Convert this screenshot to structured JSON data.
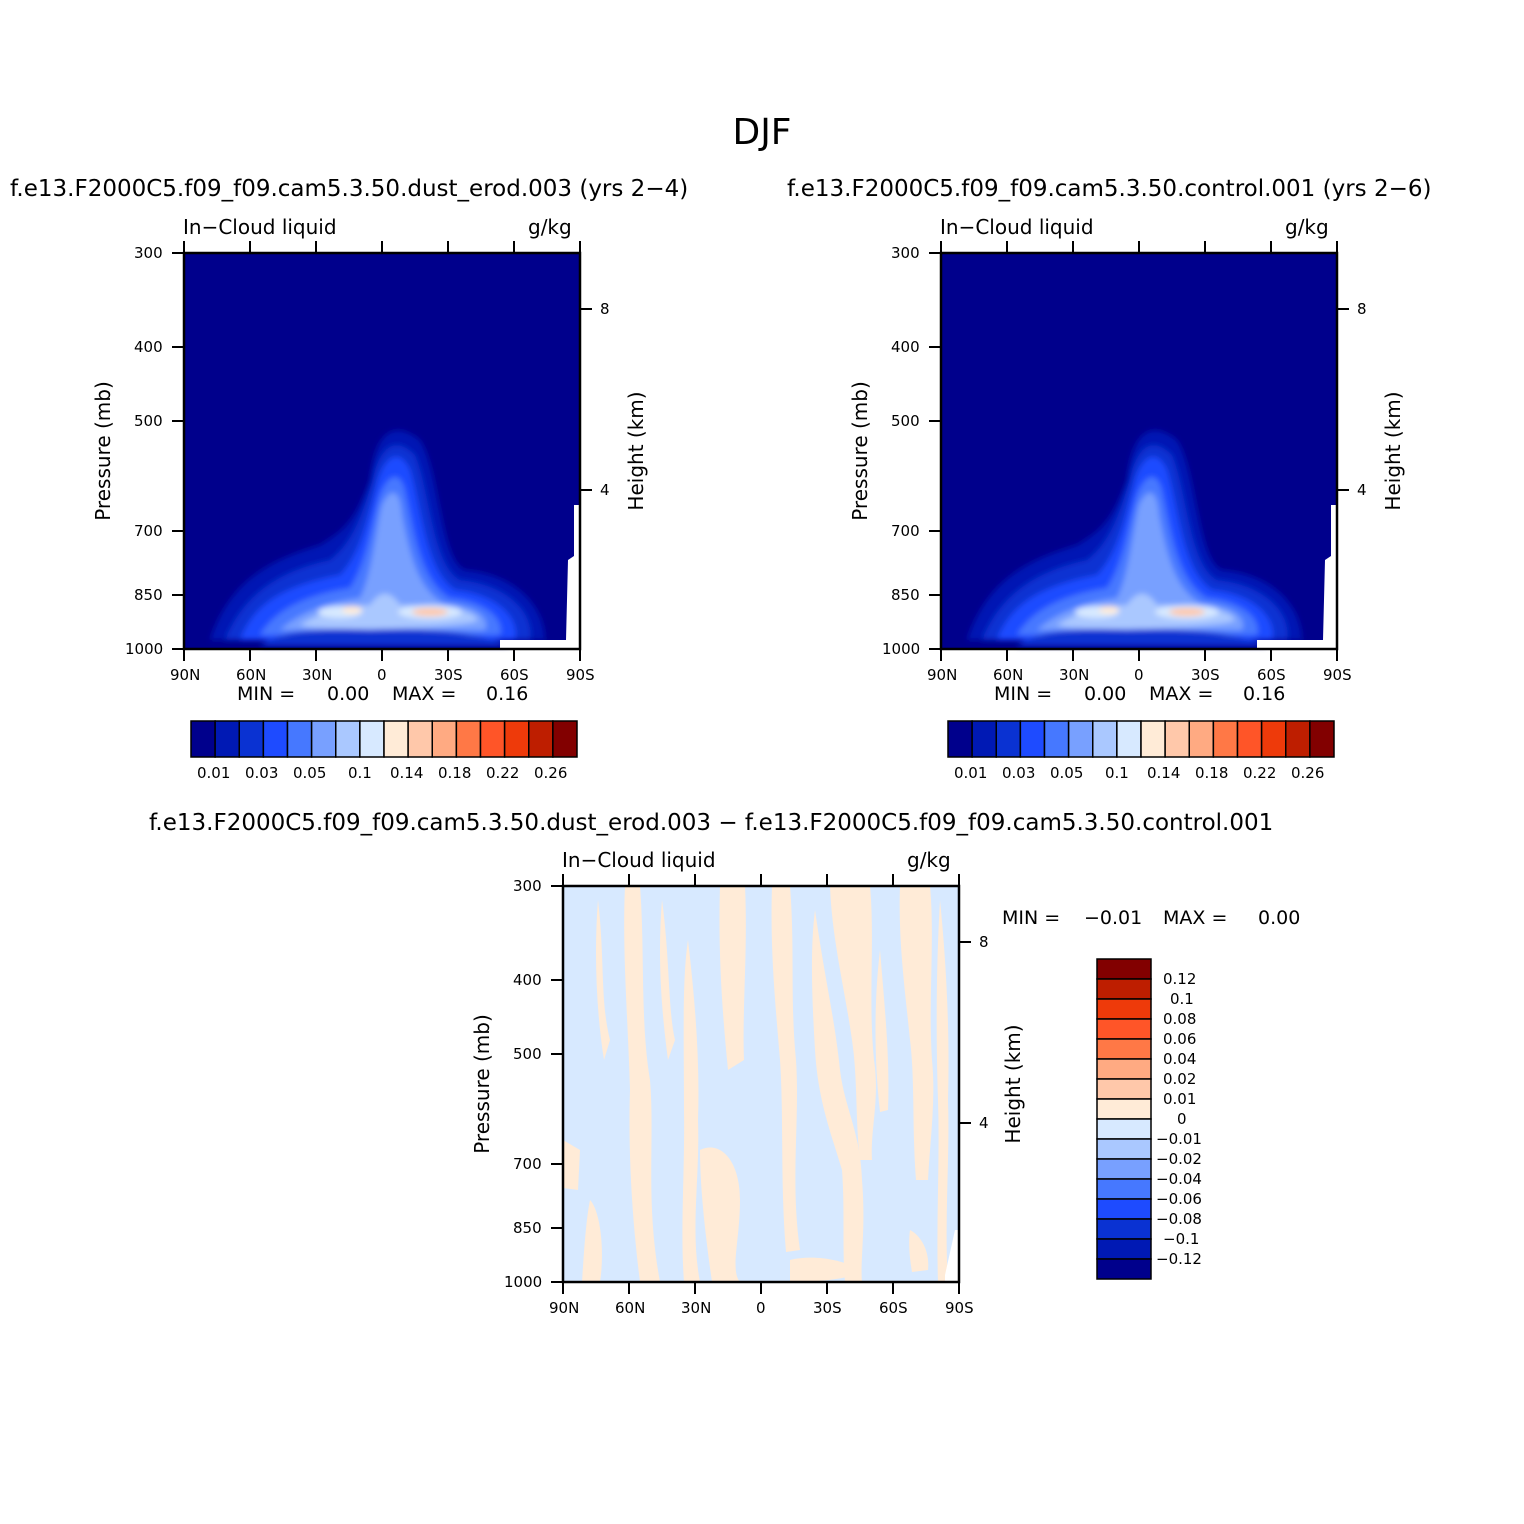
{
  "main_title": "DJF",
  "chart_data": [
    {
      "type": "heatmap",
      "title": "f.e13.F2000C5.f09_f09.cam5.3.50.dust_erod.003 (yrs 2-4)",
      "left_string": "In-Cloud liquid",
      "right_string": "g/kg",
      "ylabel": "Pressure (mb)",
      "y2label": "Height (km)",
      "x_ticks": [
        "90N",
        "60N",
        "30N",
        "0",
        "30S",
        "60S",
        "90S"
      ],
      "y_ticks": [
        "300",
        "400",
        "500",
        "700",
        "850",
        "1000"
      ],
      "y2_ticks": [
        "8",
        "4"
      ],
      "ylim": [
        1000,
        300
      ],
      "min_label": "MIN =",
      "min_value": "0.00",
      "max_label": "MAX =",
      "max_value": "0.16",
      "colorbar_labels": [
        "0.01",
        "0.03",
        "0.05",
        "0.1",
        "0.14",
        "0.18",
        "0.22",
        "0.26"
      ],
      "colorbar_colors": [
        "#00008c",
        "#0019b4",
        "#0a32d2",
        "#1e4bff",
        "#4678ff",
        "#78a0ff",
        "#aac8ff",
        "#d7e9ff",
        "#ffebd7",
        "#ffc8aa",
        "#ffaa82",
        "#ff7846",
        "#ff5528",
        "#ee3a0a",
        "#be1e00",
        "#820000"
      ]
    },
    {
      "type": "heatmap",
      "title": "f.e13.F2000C5.f09_f09.cam5.3.50.control.001 (yrs 2-6)",
      "left_string": "In-Cloud liquid",
      "right_string": "g/kg",
      "ylabel": "Pressure (mb)",
      "y2label": "Height (km)",
      "x_ticks": [
        "90N",
        "60N",
        "30N",
        "0",
        "30S",
        "60S",
        "90S"
      ],
      "y_ticks": [
        "300",
        "400",
        "500",
        "700",
        "850",
        "1000"
      ],
      "y2_ticks": [
        "8",
        "4"
      ],
      "ylim": [
        1000,
        300
      ],
      "min_label": "MIN =",
      "min_value": "0.00",
      "max_label": "MAX =",
      "max_value": "0.16",
      "colorbar_labels": [
        "0.01",
        "0.03",
        "0.05",
        "0.1",
        "0.14",
        "0.18",
        "0.22",
        "0.26"
      ],
      "colorbar_colors": [
        "#00008c",
        "#0019b4",
        "#0a32d2",
        "#1e4bff",
        "#4678ff",
        "#78a0ff",
        "#aac8ff",
        "#d7e9ff",
        "#ffebd7",
        "#ffc8aa",
        "#ffaa82",
        "#ff7846",
        "#ff5528",
        "#ee3a0a",
        "#be1e00",
        "#820000"
      ]
    },
    {
      "type": "heatmap",
      "title": "f.e13.F2000C5.f09_f09.cam5.3.50.dust_erod.003 - f.e13.F2000C5.f09_f09.cam5.3.50.control.001",
      "left_string": "In-Cloud liquid",
      "right_string": "g/kg",
      "ylabel": "Pressure (mb)",
      "y2label": "Height (km)",
      "x_ticks": [
        "90N",
        "60N",
        "30N",
        "0",
        "30S",
        "60S",
        "90S"
      ],
      "y_ticks": [
        "300",
        "400",
        "500",
        "700",
        "850",
        "1000"
      ],
      "y2_ticks": [
        "8",
        "4"
      ],
      "ylim": [
        1000,
        300
      ],
      "min_label": "MIN =",
      "min_value": "-0.01",
      "max_label": "MAX =",
      "max_value": "0.00",
      "colorbar_labels": [
        "0.12",
        "0.1",
        "0.08",
        "0.06",
        "0.04",
        "0.02",
        "0.01",
        "0",
        "-0.01",
        "-0.02",
        "-0.04",
        "-0.06",
        "-0.08",
        "-0.1",
        "-0.12"
      ],
      "colorbar_colors": [
        "#820000",
        "#be1e00",
        "#ee3a0a",
        "#ff5528",
        "#ff7846",
        "#ffaa82",
        "#ffc8aa",
        "#ffebd7",
        "#d7e9ff",
        "#aac8ff",
        "#78a0ff",
        "#4678ff",
        "#1e4bff",
        "#0a32d2",
        "#0019b4",
        "#00008c"
      ]
    }
  ]
}
